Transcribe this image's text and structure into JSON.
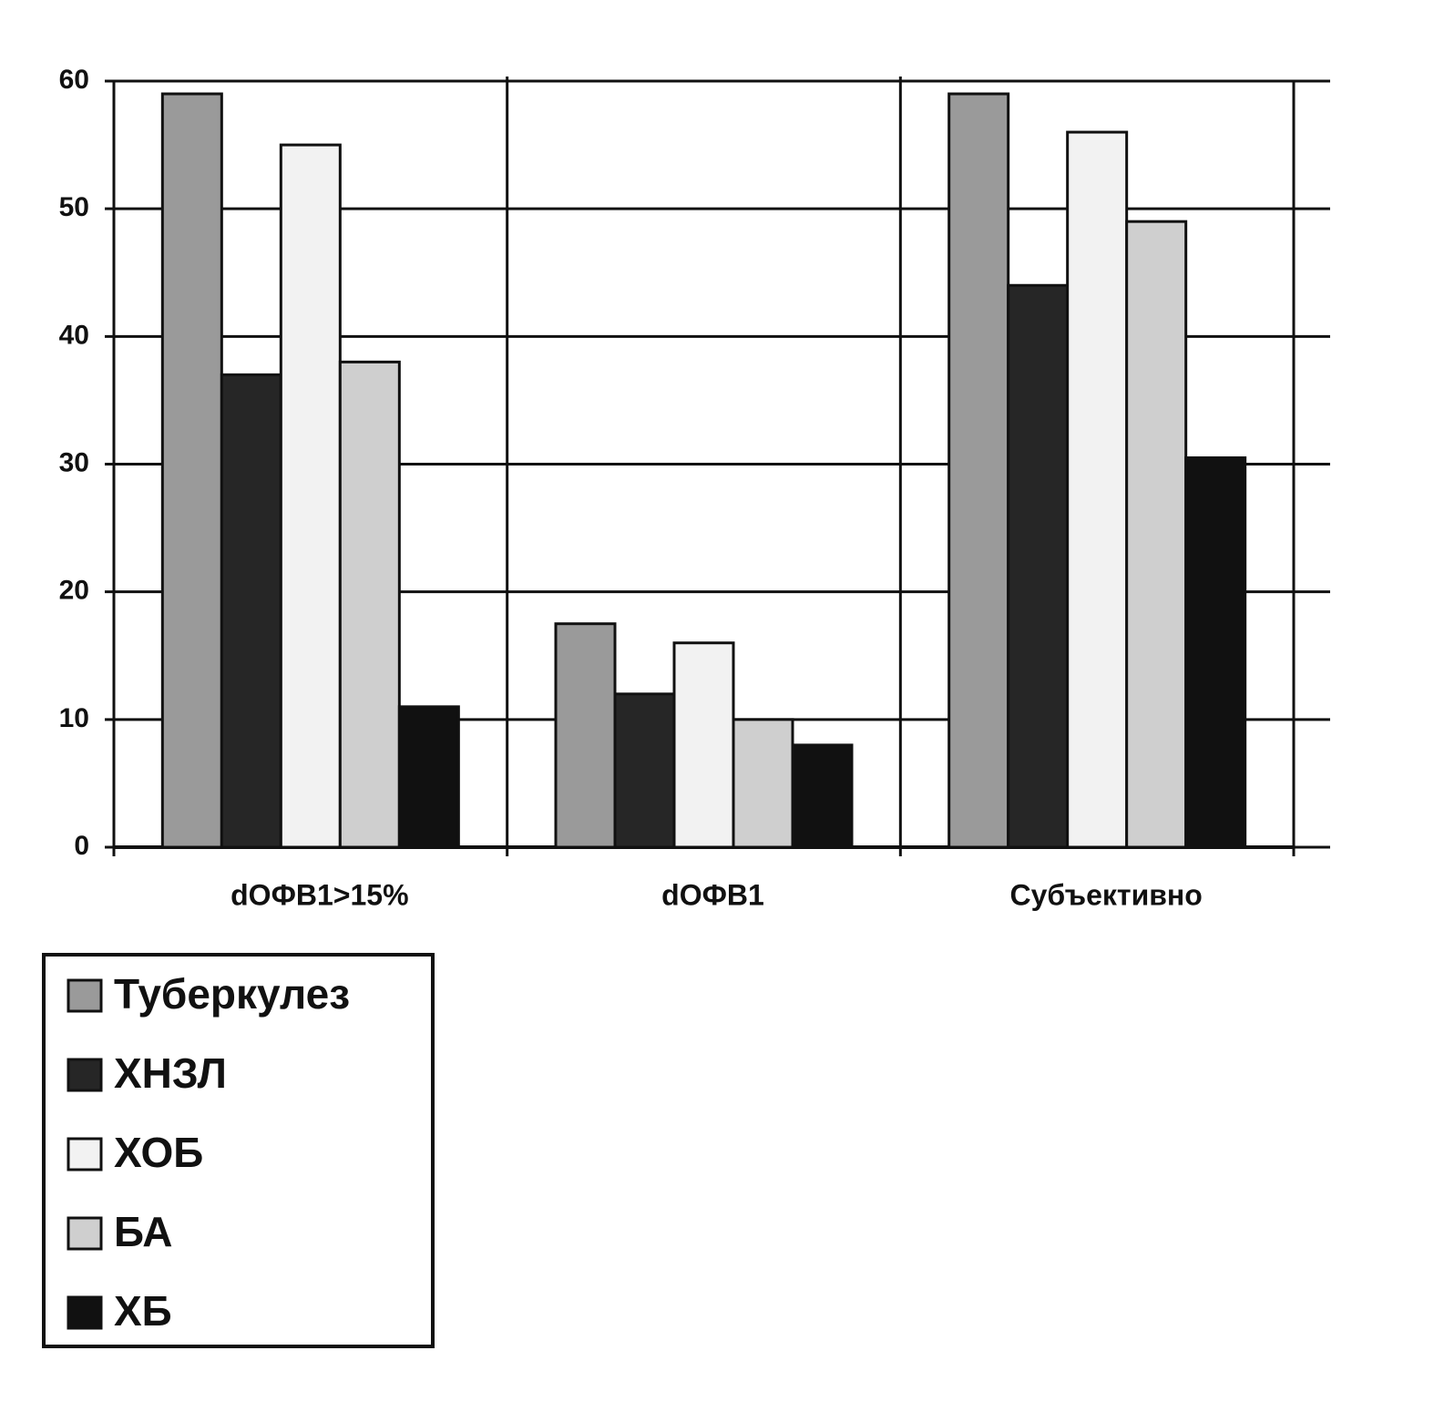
{
  "chart_data": {
    "type": "bar",
    "categories": [
      "dОФВ1>15%",
      "dОФВ1",
      "Субъективно"
    ],
    "series": [
      {
        "name": "Туберкулез",
        "color": "#9a9a9a",
        "values": [
          59,
          17.5,
          59
        ]
      },
      {
        "name": "ХНЗЛ",
        "color": "#262626",
        "values": [
          37,
          12,
          44
        ]
      },
      {
        "name": "ХОБ",
        "color": "#f2f2f2",
        "values": [
          55,
          16,
          56
        ]
      },
      {
        "name": "БА",
        "color": "#cfcfcf",
        "values": [
          38,
          10,
          49
        ]
      },
      {
        "name": "ХБ",
        "color": "#111111",
        "values": [
          11,
          8,
          30.5
        ]
      }
    ],
    "ylim": [
      0,
      60
    ],
    "yticks": [
      0,
      10,
      20,
      30,
      40,
      50,
      60
    ],
    "grid": true,
    "legend": "bottom-left"
  }
}
